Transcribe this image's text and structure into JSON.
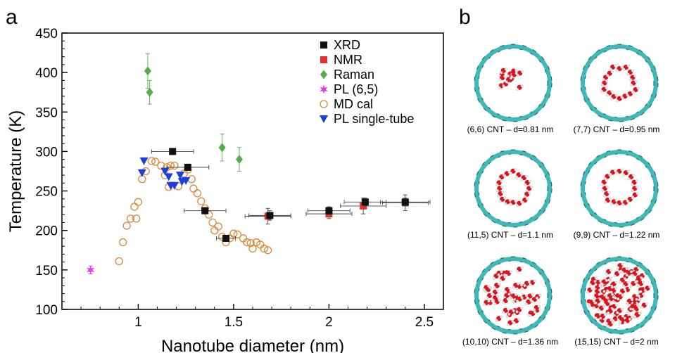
{
  "panel_a": {
    "letter": "a"
  },
  "panel_b": {
    "letter": "b",
    "items": [
      {
        "caption": "(6,6) CNT – d=0.81 nm",
        "water": "small-cluster"
      },
      {
        "caption": "(7,7) CNT – d=0.95 nm",
        "water": "ring"
      },
      {
        "caption": "(11,5) CNT – d=1.1 nm",
        "water": "ring"
      },
      {
        "caption": "(9,9) CNT – d=1.22 nm",
        "water": "ring"
      },
      {
        "caption": "(10,10) CNT – d=1.36 nm",
        "water": "filled"
      },
      {
        "caption": "(15,15) CNT – d=2 nm",
        "water": "filled-dense"
      }
    ],
    "colors": {
      "tube": "#3fb8b8",
      "tube_dark": "#1e5858",
      "oxygen": "#d8141c",
      "hydrogen": "#e8e8e8"
    }
  },
  "chart_data": {
    "type": "scatter",
    "xlabel": "Nanotube diameter (nm)",
    "ylabel": "Temperature (K)",
    "xlim": [
      0.6,
      2.6
    ],
    "ylim": [
      100,
      450
    ],
    "xticks": [
      1,
      1.5,
      2,
      2.5
    ],
    "xtick_labels": [
      "1",
      "1.5",
      "2",
      "2.5"
    ],
    "yticks": [
      100,
      150,
      200,
      250,
      300,
      350,
      400,
      450
    ],
    "ytick_labels": [
      "100",
      "150",
      "200",
      "250",
      "300",
      "350",
      "400",
      "450"
    ],
    "grid": false,
    "legend_position": "top-right",
    "series": [
      {
        "name": "XRD",
        "marker": "square",
        "color": "#111111",
        "points": [
          {
            "x": 1.18,
            "y": 300,
            "xerr": 0.11,
            "yerr": 4
          },
          {
            "x": 1.26,
            "y": 280,
            "xerr": 0.11,
            "yerr": 4
          },
          {
            "x": 1.35,
            "y": 225,
            "xerr": 0.11,
            "yerr": 4
          },
          {
            "x": 1.46,
            "y": 190,
            "xerr": 0.05,
            "yerr": 4
          },
          {
            "x": 1.69,
            "y": 219,
            "xerr": 0.11,
            "yerr": 6
          },
          {
            "x": 2.0,
            "y": 225,
            "xerr": 0.11,
            "yerr": 5
          },
          {
            "x": 2.19,
            "y": 236,
            "xerr": 0.11,
            "yerr": 5
          },
          {
            "x": 2.4,
            "y": 236,
            "xerr": 0.13,
            "yerr": 5
          }
        ]
      },
      {
        "name": "NMR",
        "marker": "square",
        "color": "#e8302a",
        "points": [
          {
            "x": 1.68,
            "y": 218,
            "xerr": 0.12,
            "yerr": 10
          },
          {
            "x": 2.0,
            "y": 221,
            "xerr": 0.12,
            "yerr": 6
          },
          {
            "x": 2.18,
            "y": 231,
            "xerr": 0.12,
            "yerr": 10
          },
          {
            "x": 2.4,
            "y": 235,
            "xerr": 0.12,
            "yerr": 10
          }
        ]
      },
      {
        "name": "Raman",
        "marker": "diamond",
        "color": "#52ae46",
        "points": [
          {
            "x": 1.05,
            "y": 402,
            "yerr": 22
          },
          {
            "x": 1.06,
            "y": 375,
            "yerr": 15
          },
          {
            "x": 1.44,
            "y": 305,
            "yerr": 17
          },
          {
            "x": 1.53,
            "y": 290,
            "yerr": 15
          }
        ]
      },
      {
        "name": "PL (6,5)",
        "marker": "star",
        "color": "#e33ce6",
        "points": [
          {
            "x": 0.75,
            "y": 150,
            "yerr": 5
          }
        ]
      },
      {
        "name": "MD cal",
        "marker": "open-circle",
        "color": "#d9893a",
        "points": [
          {
            "x": 0.9,
            "y": 161
          },
          {
            "x": 0.92,
            "y": 185
          },
          {
            "x": 0.94,
            "y": 206
          },
          {
            "x": 0.96,
            "y": 215
          },
          {
            "x": 0.98,
            "y": 230
          },
          {
            "x": 0.99,
            "y": 215
          },
          {
            "x": 1.0,
            "y": 236
          },
          {
            "x": 1.02,
            "y": 265
          },
          {
            "x": 1.04,
            "y": 275
          },
          {
            "x": 1.07,
            "y": 288
          },
          {
            "x": 1.09,
            "y": 287
          },
          {
            "x": 1.12,
            "y": 282
          },
          {
            "x": 1.14,
            "y": 270
          },
          {
            "x": 1.15,
            "y": 280
          },
          {
            "x": 1.16,
            "y": 255
          },
          {
            "x": 1.17,
            "y": 282
          },
          {
            "x": 1.19,
            "y": 282
          },
          {
            "x": 1.21,
            "y": 256
          },
          {
            "x": 1.24,
            "y": 272
          },
          {
            "x": 1.26,
            "y": 277
          },
          {
            "x": 1.28,
            "y": 265
          },
          {
            "x": 1.29,
            "y": 253
          },
          {
            "x": 1.31,
            "y": 247
          },
          {
            "x": 1.33,
            "y": 237
          },
          {
            "x": 1.35,
            "y": 228
          },
          {
            "x": 1.37,
            "y": 220
          },
          {
            "x": 1.39,
            "y": 210
          },
          {
            "x": 1.4,
            "y": 200
          },
          {
            "x": 1.42,
            "y": 205
          },
          {
            "x": 1.44,
            "y": 192
          },
          {
            "x": 1.46,
            "y": 185
          },
          {
            "x": 1.48,
            "y": 190
          },
          {
            "x": 1.5,
            "y": 196
          },
          {
            "x": 1.52,
            "y": 195
          },
          {
            "x": 1.55,
            "y": 190
          },
          {
            "x": 1.57,
            "y": 185
          },
          {
            "x": 1.59,
            "y": 184
          },
          {
            "x": 1.6,
            "y": 177
          },
          {
            "x": 1.62,
            "y": 185
          },
          {
            "x": 1.64,
            "y": 182
          },
          {
            "x": 1.66,
            "y": 177
          },
          {
            "x": 1.68,
            "y": 175
          }
        ]
      },
      {
        "name": "PL single-tube",
        "marker": "down-triangle",
        "color": "#1a3fdc",
        "points": [
          {
            "x": 1.03,
            "y": 288
          },
          {
            "x": 1.02,
            "y": 273
          },
          {
            "x": 1.14,
            "y": 275
          },
          {
            "x": 1.16,
            "y": 268
          },
          {
            "x": 1.17,
            "y": 257
          },
          {
            "x": 1.19,
            "y": 257
          },
          {
            "x": 1.22,
            "y": 270
          },
          {
            "x": 1.23,
            "y": 262
          },
          {
            "x": 1.25,
            "y": 263
          }
        ]
      }
    ]
  }
}
